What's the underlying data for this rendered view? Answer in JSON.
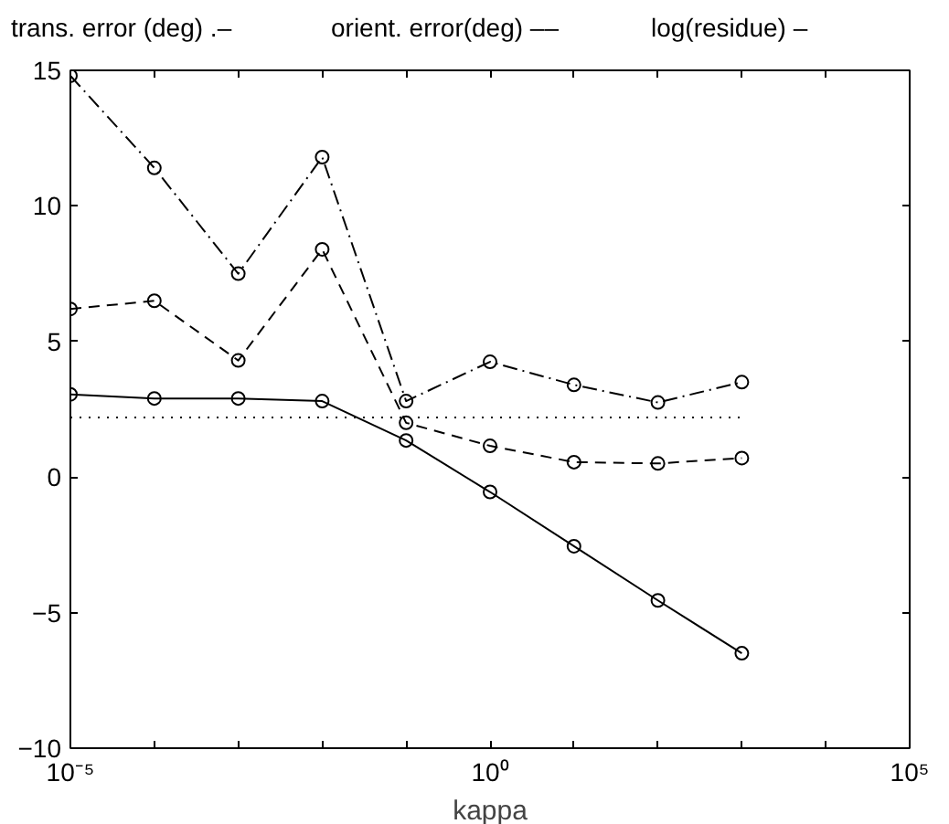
{
  "chart_data": {
    "type": "line",
    "xlabel": "kappa",
    "log": "x",
    "grid": false,
    "marker": "circle",
    "annotations": [
      "trans. error (deg) .–",
      "orient. error(deg) ––",
      "log(residue) –"
    ],
    "x": [
      1e-05,
      0.0001,
      0.001,
      0.01,
      0.1,
      1,
      10,
      100,
      1000
    ],
    "xlim": [
      1e-05,
      100000
    ],
    "xticks": [
      {
        "value": 1e-05,
        "label": "10⁻⁵"
      },
      {
        "value": 0.0001,
        "label": null
      },
      {
        "value": 0.001,
        "label": null
      },
      {
        "value": 0.01,
        "label": null
      },
      {
        "value": 0.1,
        "label": null
      },
      {
        "value": 1,
        "label": "10⁰"
      },
      {
        "value": 10,
        "label": null
      },
      {
        "value": 100,
        "label": null
      },
      {
        "value": 1000,
        "label": null
      },
      {
        "value": 10000,
        "label": null
      },
      {
        "value": 100000,
        "label": "10⁵"
      }
    ],
    "ylim": [
      -10,
      15
    ],
    "yticks": [
      -10,
      -5,
      0,
      5,
      10,
      15
    ],
    "series": [
      {
        "color": "#000000",
        "line_style": "dashdot",
        "values": [
          14.8,
          11.4,
          7.5,
          11.8,
          2.8,
          4.25,
          3.4,
          2.75,
          3.5
        ]
      },
      {
        "color": "#000000",
        "line_style": "dashed",
        "values": [
          6.2,
          6.5,
          4.3,
          8.4,
          2.0,
          1.15,
          0.55,
          0.5,
          0.7
        ]
      },
      {
        "color": "#000000",
        "line_style": "solid",
        "values": [
          3.05,
          2.9,
          2.9,
          2.8,
          1.35,
          -0.55,
          -2.55,
          -4.55,
          -6.5
        ]
      },
      {
        "color": "#000000",
        "line_style": "dotted",
        "marker": "none",
        "x": [
          1e-05,
          1000
        ],
        "values": [
          2.2,
          2.2
        ]
      }
    ]
  }
}
